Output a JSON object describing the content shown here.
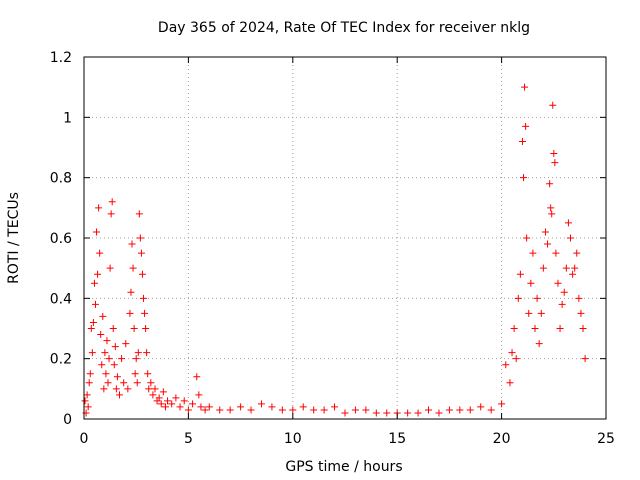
{
  "chart_data": {
    "type": "scatter",
    "title": "Day 365 of 2024, Rate Of TEC Index for receiver nklg",
    "xlabel": "GPS time / hours",
    "ylabel": "ROTI / TECUs",
    "xlim": [
      0,
      25
    ],
    "ylim": [
      0,
      1.2
    ],
    "x_ticks": [
      0,
      5,
      10,
      15,
      20,
      25
    ],
    "x_tick_labels": [
      "0",
      "5",
      "10",
      "15",
      "20",
      "25"
    ],
    "y_ticks": [
      0,
      0.2,
      0.4,
      0.6,
      0.8,
      1,
      1.2
    ],
    "y_tick_labels": [
      "0",
      "0.2",
      "0.4",
      "0.6",
      "0.8",
      "1",
      "1.2"
    ],
    "grid": true,
    "marker": "+",
    "marker_color": "#ff0000",
    "series": [
      {
        "points": [
          [
            0.05,
            0.06
          ],
          [
            0.1,
            0.02
          ],
          [
            0.15,
            0.08
          ],
          [
            0.2,
            0.04
          ],
          [
            0.25,
            0.12
          ],
          [
            0.3,
            0.15
          ],
          [
            0.35,
            0.3
          ],
          [
            0.4,
            0.22
          ],
          [
            0.45,
            0.32
          ],
          [
            0.5,
            0.45
          ],
          [
            0.55,
            0.38
          ],
          [
            0.6,
            0.62
          ],
          [
            0.65,
            0.48
          ],
          [
            0.7,
            0.7
          ],
          [
            0.75,
            0.55
          ],
          [
            0.8,
            0.28
          ],
          [
            0.85,
            0.18
          ],
          [
            0.9,
            0.34
          ],
          [
            0.95,
            0.1
          ],
          [
            1.0,
            0.22
          ],
          [
            1.05,
            0.15
          ],
          [
            1.1,
            0.26
          ],
          [
            1.15,
            0.12
          ],
          [
            1.2,
            0.2
          ],
          [
            1.25,
            0.5
          ],
          [
            1.3,
            0.68
          ],
          [
            1.35,
            0.72
          ],
          [
            1.4,
            0.3
          ],
          [
            1.45,
            0.18
          ],
          [
            1.5,
            0.24
          ],
          [
            1.55,
            0.1
          ],
          [
            1.6,
            0.14
          ],
          [
            1.7,
            0.08
          ],
          [
            1.8,
            0.2
          ],
          [
            1.9,
            0.12
          ],
          [
            2.0,
            0.25
          ],
          [
            2.1,
            0.1
          ],
          [
            2.2,
            0.35
          ],
          [
            2.25,
            0.42
          ],
          [
            2.3,
            0.58
          ],
          [
            2.35,
            0.5
          ],
          [
            2.4,
            0.3
          ],
          [
            2.45,
            0.15
          ],
          [
            2.5,
            0.2
          ],
          [
            2.55,
            0.12
          ],
          [
            2.6,
            0.22
          ],
          [
            2.65,
            0.68
          ],
          [
            2.7,
            0.6
          ],
          [
            2.75,
            0.55
          ],
          [
            2.8,
            0.48
          ],
          [
            2.85,
            0.4
          ],
          [
            2.9,
            0.35
          ],
          [
            2.95,
            0.3
          ],
          [
            3.0,
            0.22
          ],
          [
            3.05,
            0.15
          ],
          [
            3.1,
            0.1
          ],
          [
            3.2,
            0.12
          ],
          [
            3.3,
            0.08
          ],
          [
            3.4,
            0.1
          ],
          [
            3.5,
            0.06
          ],
          [
            3.6,
            0.07
          ],
          [
            3.7,
            0.05
          ],
          [
            3.8,
            0.09
          ],
          [
            3.9,
            0.04
          ],
          [
            4.0,
            0.06
          ],
          [
            4.2,
            0.05
          ],
          [
            4.4,
            0.07
          ],
          [
            4.6,
            0.04
          ],
          [
            4.8,
            0.06
          ],
          [
            5.0,
            0.03
          ],
          [
            5.2,
            0.05
          ],
          [
            5.4,
            0.14
          ],
          [
            5.5,
            0.08
          ],
          [
            5.6,
            0.04
          ],
          [
            5.8,
            0.03
          ],
          [
            6.0,
            0.04
          ],
          [
            6.5,
            0.03
          ],
          [
            7.0,
            0.03
          ],
          [
            7.5,
            0.04
          ],
          [
            8.0,
            0.03
          ],
          [
            8.5,
            0.05
          ],
          [
            9.0,
            0.04
          ],
          [
            9.5,
            0.03
          ],
          [
            10.0,
            0.03
          ],
          [
            10.5,
            0.04
          ],
          [
            11.0,
            0.03
          ],
          [
            11.5,
            0.03
          ],
          [
            12.0,
            0.04
          ],
          [
            12.5,
            0.02
          ],
          [
            13.0,
            0.03
          ],
          [
            13.5,
            0.03
          ],
          [
            14.0,
            0.02
          ],
          [
            14.5,
            0.02
          ],
          [
            15.0,
            0.02
          ],
          [
            15.5,
            0.02
          ],
          [
            16.0,
            0.02
          ],
          [
            16.5,
            0.03
          ],
          [
            17.0,
            0.02
          ],
          [
            17.5,
            0.03
          ],
          [
            18.0,
            0.03
          ],
          [
            18.5,
            0.03
          ],
          [
            19.0,
            0.04
          ],
          [
            19.5,
            0.03
          ],
          [
            20.0,
            0.05
          ],
          [
            20.2,
            0.18
          ],
          [
            20.4,
            0.12
          ],
          [
            20.5,
            0.22
          ],
          [
            20.6,
            0.3
          ],
          [
            20.7,
            0.2
          ],
          [
            20.8,
            0.4
          ],
          [
            20.9,
            0.48
          ],
          [
            21.0,
            0.92
          ],
          [
            21.05,
            0.8
          ],
          [
            21.1,
            1.1
          ],
          [
            21.15,
            0.97
          ],
          [
            21.2,
            0.6
          ],
          [
            21.3,
            0.35
          ],
          [
            21.4,
            0.45
          ],
          [
            21.5,
            0.55
          ],
          [
            21.6,
            0.3
          ],
          [
            21.7,
            0.4
          ],
          [
            21.8,
            0.25
          ],
          [
            21.9,
            0.35
          ],
          [
            22.0,
            0.5
          ],
          [
            22.1,
            0.62
          ],
          [
            22.2,
            0.58
          ],
          [
            22.3,
            0.78
          ],
          [
            22.35,
            0.7
          ],
          [
            22.4,
            0.68
          ],
          [
            22.45,
            1.04
          ],
          [
            22.5,
            0.88
          ],
          [
            22.55,
            0.85
          ],
          [
            22.6,
            0.55
          ],
          [
            22.7,
            0.45
          ],
          [
            22.8,
            0.3
          ],
          [
            22.9,
            0.38
          ],
          [
            23.0,
            0.42
          ],
          [
            23.1,
            0.5
          ],
          [
            23.2,
            0.65
          ],
          [
            23.3,
            0.6
          ],
          [
            23.4,
            0.48
          ],
          [
            23.5,
            0.5
          ],
          [
            23.6,
            0.55
          ],
          [
            23.7,
            0.4
          ],
          [
            23.8,
            0.35
          ],
          [
            23.9,
            0.3
          ],
          [
            24.0,
            0.2
          ]
        ]
      }
    ]
  }
}
